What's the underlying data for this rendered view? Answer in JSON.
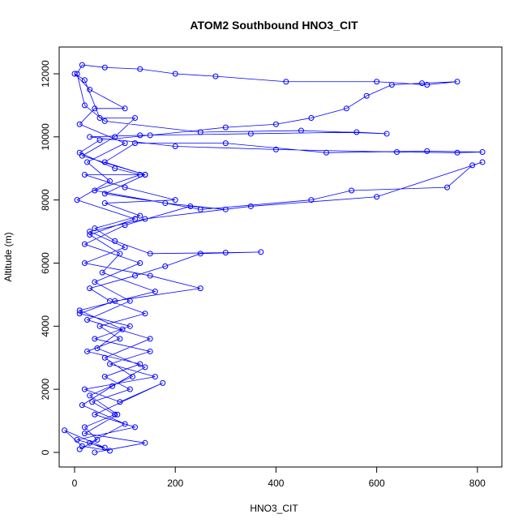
{
  "chart_data": {
    "type": "line",
    "markers": true,
    "title": "ATOM2 Southbound HNO3_CIT",
    "x_label": "HNO3_CIT",
    "y_label": "Altitude (m)",
    "color": "#0000ff",
    "x": [
      10,
      45,
      20,
      80,
      35,
      110,
      60,
      130,
      25,
      90,
      50,
      140,
      70,
      30,
      120,
      180,
      250,
      370,
      300,
      150,
      80,
      40,
      130,
      60,
      200,
      100,
      20,
      140,
      60,
      120,
      300,
      500,
      700,
      810,
      760,
      640,
      400,
      200,
      30,
      130,
      350,
      560,
      620,
      450,
      250,
      60,
      20,
      5,
      15,
      60,
      130,
      200,
      280,
      420,
      600,
      700,
      760,
      690,
      630,
      580,
      540,
      470,
      400,
      300,
      150,
      50,
      10,
      80,
      130,
      40,
      250,
      470,
      550,
      740,
      790,
      810,
      600,
      350,
      140,
      30,
      100,
      20,
      150,
      250,
      80,
      10,
      110,
      40,
      150,
      70,
      160,
      20,
      90,
      175,
      40,
      120,
      5,
      60,
      -20,
      15,
      70,
      30,
      100,
      15,
      75,
      140,
      45,
      95,
      10,
      160,
      55,
      90,
      30,
      120,
      5,
      70,
      25,
      100,
      10,
      40,
      100,
      30,
      0,
      20,
      50,
      120,
      80,
      15,
      140,
      60,
      180,
      300,
      230,
      100,
      20,
      130,
      40,
      110,
      25,
      150,
      60,
      115,
      30,
      85,
      20,
      140,
      40
    ],
    "values": [
      100,
      400,
      800,
      1200,
      1600,
      2000,
      2400,
      2800,
      3200,
      3600,
      4000,
      4400,
      4800,
      5200,
      5600,
      5900,
      6300,
      6350,
      6330,
      6300,
      6700,
      7100,
      7500,
      7900,
      8000,
      8400,
      8800,
      8800,
      9200,
      9800,
      9800,
      9500,
      9550,
      9520,
      9500,
      9520,
      9600,
      9700,
      10000,
      10050,
      10100,
      10150,
      10100,
      10200,
      10150,
      10500,
      11000,
      12000,
      12280,
      12200,
      12150,
      12000,
      11920,
      11750,
      11750,
      11650,
      11750,
      11700,
      11650,
      11300,
      10900,
      10600,
      10400,
      10300,
      10050,
      9900,
      9500,
      9000,
      8800,
      8300,
      7700,
      8000,
      8300,
      8400,
      9100,
      9200,
      8100,
      7800,
      7400,
      7000,
      6500,
      6000,
      5600,
      5200,
      4800,
      4400,
      4000,
      3600,
      3200,
      2800,
      2400,
      2000,
      1600,
      2200,
      1200,
      800,
      400,
      150,
      700,
      200,
      50,
      300,
      900,
      1500,
      2100,
      2700,
      3300,
      3900,
      4500,
      5100,
      5700,
      6300,
      6900,
      7400,
      8000,
      8600,
      9200,
      9800,
      10400,
      10900,
      10900,
      11500,
      12000,
      11800,
      10600,
      10600,
      10000,
      9400,
      8800,
      8200,
      7900,
      7700,
      7800,
      7200,
      6600,
      6000,
      5400,
      4800,
      4200,
      3600,
      3000,
      2400,
      1800,
      1200,
      600,
      300,
      0
    ],
    "xlim": [
      -30.6,
      848.6
    ],
    "ylim": [
      -463,
      12848
    ],
    "xticks": [
      0,
      200,
      400,
      600,
      800
    ],
    "yticks": [
      0,
      2000,
      4000,
      6000,
      8000,
      10000,
      12000
    ]
  }
}
